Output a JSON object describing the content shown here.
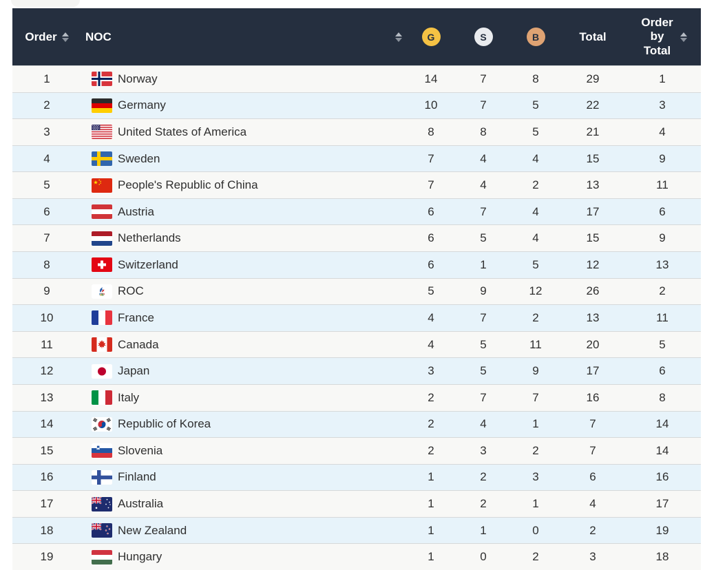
{
  "table": {
    "colors": {
      "header_bg": "#252f3f",
      "gold": "#f5c244",
      "silver": "#e9ebee",
      "bronze": "#dfa373",
      "row": "#f8f8f6",
      "row_alt": "#e7f3fa",
      "text": "#2f2f2f",
      "divider": "#d6d9da"
    },
    "header": {
      "order_label": "Order",
      "noc_label": "NOC",
      "gold_label": "G",
      "silver_label": "S",
      "bronze_label": "B",
      "total_label": "Total",
      "order_by_total_label": "Order by Total",
      "sort_icon": "double-triangle-sort"
    },
    "rows": [
      {
        "order": "1",
        "flag": "norway",
        "noc": "Norway",
        "gold": "14",
        "silver": "7",
        "bronze": "8",
        "total": "29",
        "order_by_total": "1"
      },
      {
        "order": "2",
        "flag": "germany",
        "noc": "Germany",
        "gold": "10",
        "silver": "7",
        "bronze": "5",
        "total": "22",
        "order_by_total": "3"
      },
      {
        "order": "3",
        "flag": "usa",
        "noc": "United States of America",
        "gold": "8",
        "silver": "8",
        "bronze": "5",
        "total": "21",
        "order_by_total": "4"
      },
      {
        "order": "4",
        "flag": "sweden",
        "noc": "Sweden",
        "gold": "7",
        "silver": "4",
        "bronze": "4",
        "total": "15",
        "order_by_total": "9"
      },
      {
        "order": "5",
        "flag": "china",
        "noc": "People's Republic of China",
        "gold": "7",
        "silver": "4",
        "bronze": "2",
        "total": "13",
        "order_by_total": "11"
      },
      {
        "order": "6",
        "flag": "austria",
        "noc": "Austria",
        "gold": "6",
        "silver": "7",
        "bronze": "4",
        "total": "17",
        "order_by_total": "6"
      },
      {
        "order": "7",
        "flag": "netherlands",
        "noc": "Netherlands",
        "gold": "6",
        "silver": "5",
        "bronze": "4",
        "total": "15",
        "order_by_total": "9"
      },
      {
        "order": "8",
        "flag": "switzerland",
        "noc": "Switzerland",
        "gold": "6",
        "silver": "1",
        "bronze": "5",
        "total": "12",
        "order_by_total": "13"
      },
      {
        "order": "9",
        "flag": "roc",
        "noc": "ROC",
        "gold": "5",
        "silver": "9",
        "bronze": "12",
        "total": "26",
        "order_by_total": "2"
      },
      {
        "order": "10",
        "flag": "france",
        "noc": "France",
        "gold": "4",
        "silver": "7",
        "bronze": "2",
        "total": "13",
        "order_by_total": "11"
      },
      {
        "order": "11",
        "flag": "canada",
        "noc": "Canada",
        "gold": "4",
        "silver": "5",
        "bronze": "11",
        "total": "20",
        "order_by_total": "5"
      },
      {
        "order": "12",
        "flag": "japan",
        "noc": "Japan",
        "gold": "3",
        "silver": "5",
        "bronze": "9",
        "total": "17",
        "order_by_total": "6"
      },
      {
        "order": "13",
        "flag": "italy",
        "noc": "Italy",
        "gold": "2",
        "silver": "7",
        "bronze": "7",
        "total": "16",
        "order_by_total": "8"
      },
      {
        "order": "14",
        "flag": "south-korea",
        "noc": "Republic of Korea",
        "gold": "2",
        "silver": "4",
        "bronze": "1",
        "total": "7",
        "order_by_total": "14"
      },
      {
        "order": "15",
        "flag": "slovenia",
        "noc": "Slovenia",
        "gold": "2",
        "silver": "3",
        "bronze": "2",
        "total": "7",
        "order_by_total": "14"
      },
      {
        "order": "16",
        "flag": "finland",
        "noc": "Finland",
        "gold": "1",
        "silver": "2",
        "bronze": "3",
        "total": "6",
        "order_by_total": "16"
      },
      {
        "order": "17",
        "flag": "australia",
        "noc": "Australia",
        "gold": "1",
        "silver": "2",
        "bronze": "1",
        "total": "4",
        "order_by_total": "17"
      },
      {
        "order": "18",
        "flag": "new-zealand",
        "noc": "New Zealand",
        "gold": "1",
        "silver": "1",
        "bronze": "0",
        "total": "2",
        "order_by_total": "19"
      },
      {
        "order": "19",
        "flag": "hungary",
        "noc": "Hungary",
        "gold": "1",
        "silver": "0",
        "bronze": "2",
        "total": "3",
        "order_by_total": "18"
      }
    ]
  }
}
